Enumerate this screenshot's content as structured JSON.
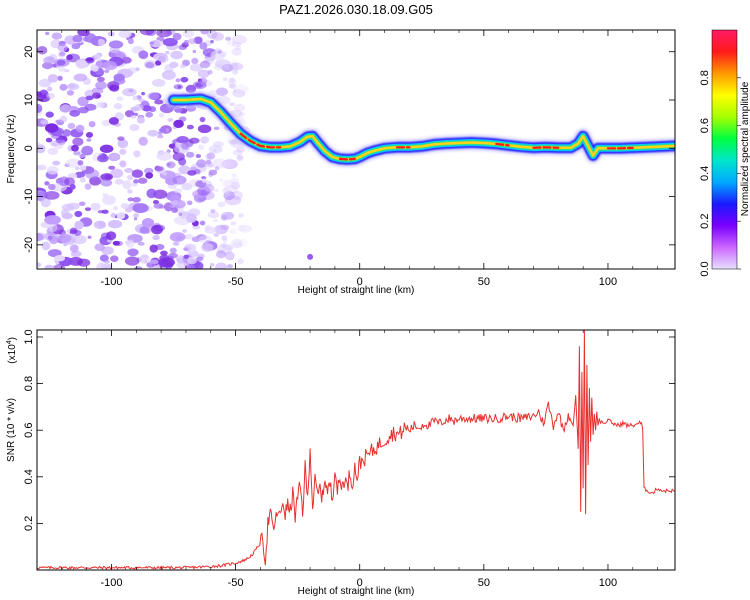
{
  "title": "PAZ1.2026.030.18.09.G05",
  "colors": {
    "snr_line": "#e8302e",
    "frame": "#000000",
    "scatter": "#9b59f5",
    "trace_core": "#ff1a1a",
    "trace_mid": "#ffd21a",
    "trace_halo": "#33e07a",
    "trace_edge": "#1a1aff"
  },
  "chart_data": [
    {
      "type": "heatmap",
      "title": "PAZ1.2026.030.18.09.G05",
      "xlabel": "Height of straight line (km)",
      "ylabel": "Frequency (Hz)",
      "xlim": [
        -130,
        127
      ],
      "ylim": [
        -25,
        24.5
      ],
      "xticks": [
        -100,
        -50,
        0,
        50,
        100
      ],
      "xtick_labels": [
        "-100",
        "-50",
        "0",
        "50",
        "100"
      ],
      "yticks": [
        -20,
        -10,
        0,
        10,
        20
      ],
      "ytick_labels": [
        "-20",
        "-10",
        "0",
        "10",
        "20"
      ],
      "noise_region_x": [
        -130,
        -50
      ],
      "outlier_point": {
        "x": -20,
        "y": -22.5
      },
      "ridge": {
        "description": "Spectral peak frequency vs height",
        "x": [
          -75,
          -70,
          -64,
          -60,
          -56,
          -52,
          -48,
          -44,
          -40,
          -36,
          -32,
          -28,
          -24,
          -21,
          -19,
          -17,
          -14,
          -11,
          -8,
          -5,
          -2,
          0,
          3,
          6,
          10,
          15,
          20,
          25,
          30,
          35,
          40,
          45,
          50,
          55,
          60,
          65,
          70,
          75,
          80,
          85,
          88,
          90,
          92,
          94,
          96,
          100,
          105,
          110,
          115,
          120,
          127
        ],
        "y": [
          10,
          10,
          10.2,
          9.5,
          7.5,
          5.2,
          3,
          1.5,
          0.5,
          0.2,
          0.2,
          0.4,
          1.3,
          2.4,
          2.5,
          1.2,
          -0.6,
          -1.8,
          -2.2,
          -2.3,
          -2.2,
          -1.8,
          -1,
          -0.5,
          0,
          0.2,
          0.2,
          0.4,
          0.8,
          1,
          1.1,
          1.2,
          1.1,
          0.9,
          0.6,
          0.3,
          0.1,
          0.2,
          0.1,
          0.1,
          1,
          2.5,
          0.5,
          -1.5,
          0,
          0,
          0,
          0.1,
          0.2,
          0.3,
          0.5
        ]
      },
      "colorbar": {
        "label": "Normalized spectral amplitude",
        "range": [
          0,
          1
        ],
        "ticks": [
          0.0,
          0.2,
          0.4,
          0.6,
          0.8
        ],
        "tick_labels": [
          "0.0",
          "0.2",
          "0.4",
          "0.6",
          "0.8"
        ],
        "colors": [
          "#e6e0ff",
          "#cc66ff",
          "#7a00ff",
          "#1a1aff",
          "#00aaff",
          "#00e6cc",
          "#00ff40",
          "#a6ff00",
          "#ffff00",
          "#ff9900",
          "#ff1a1a",
          "#ff1a66"
        ]
      }
    },
    {
      "type": "line",
      "xlabel": "Height of straight line (km)",
      "ylabel": "SNR (10 * v/v)",
      "scale_label_base": "(x10",
      "scale_label_exp": "4",
      "scale_label_close": ")",
      "xlim": [
        -130,
        127
      ],
      "ylim": [
        0,
        1.03
      ],
      "xticks": [
        -100,
        -50,
        0,
        50,
        100
      ],
      "xtick_labels": [
        "-100",
        "-50",
        "0",
        "50",
        "100"
      ],
      "yticks": [
        0.2,
        0.4,
        0.6,
        0.8,
        1.0
      ],
      "ytick_labels": [
        "0.2",
        "0.4",
        "0.6",
        "0.8",
        "1.0"
      ],
      "series": [
        {
          "name": "SNR",
          "x": [
            -130,
            -120,
            -110,
            -100,
            -90,
            -80,
            -70,
            -60,
            -55,
            -50,
            -47,
            -45,
            -43,
            -41,
            -39,
            -38,
            -37,
            -36,
            -35,
            -34,
            -33,
            -32,
            -31,
            -30,
            -29,
            -28,
            -27,
            -26,
            -25,
            -24,
            -23,
            -22,
            -21,
            -20,
            -19,
            -18,
            -17,
            -16,
            -15,
            -14,
            -13,
            -12,
            -11,
            -10,
            -9,
            -8,
            -7,
            -6,
            -5,
            -4,
            -3,
            -2,
            -1,
            0,
            2,
            4,
            6,
            8,
            10,
            12,
            14,
            16,
            18,
            20,
            22,
            24,
            26,
            28,
            30,
            32,
            34,
            36,
            38,
            40,
            45,
            50,
            55,
            60,
            65,
            70,
            72,
            74,
            76,
            78,
            80,
            82,
            84,
            85,
            86,
            87,
            88,
            88.5,
            89,
            89.5,
            90,
            90.5,
            91,
            91.5,
            92,
            92.5,
            93,
            93.5,
            94,
            94.5,
            95,
            95.5,
            96,
            96.5,
            97,
            97.5,
            98,
            99,
            100,
            102,
            104,
            106,
            108,
            110,
            112,
            113.5,
            114,
            114.5,
            116,
            118,
            120,
            122,
            124,
            127
          ],
          "y": [
            0.01,
            0.01,
            0.01,
            0.01,
            0.01,
            0.01,
            0.01,
            0.015,
            0.02,
            0.03,
            0.04,
            0.05,
            0.07,
            0.1,
            0.13,
            0.04,
            0.2,
            0.24,
            0.18,
            0.2,
            0.26,
            0.22,
            0.3,
            0.24,
            0.28,
            0.25,
            0.33,
            0.23,
            0.31,
            0.36,
            0.25,
            0.44,
            0.3,
            0.53,
            0.27,
            0.38,
            0.32,
            0.35,
            0.31,
            0.4,
            0.33,
            0.37,
            0.3,
            0.45,
            0.34,
            0.38,
            0.36,
            0.4,
            0.35,
            0.42,
            0.37,
            0.44,
            0.4,
            0.46,
            0.48,
            0.5,
            0.52,
            0.54,
            0.56,
            0.58,
            0.59,
            0.58,
            0.61,
            0.6,
            0.62,
            0.61,
            0.63,
            0.62,
            0.64,
            0.63,
            0.64,
            0.65,
            0.64,
            0.65,
            0.65,
            0.65,
            0.65,
            0.66,
            0.65,
            0.66,
            0.68,
            0.63,
            0.71,
            0.62,
            0.68,
            0.6,
            0.67,
            0.64,
            0.62,
            0.75,
            0.52,
            0.96,
            0.25,
            0.85,
            0.35,
            1.03,
            0.24,
            0.88,
            0.45,
            0.78,
            0.55,
            0.74,
            0.58,
            0.67,
            0.6,
            0.68,
            0.62,
            0.65,
            0.63,
            0.64,
            0.63,
            0.63,
            0.64,
            0.63,
            0.62,
            0.63,
            0.62,
            0.62,
            0.63,
            0.63,
            0.6,
            0.35,
            0.34,
            0.33,
            0.35,
            0.34,
            0.34,
            0.34
          ]
        }
      ]
    }
  ]
}
